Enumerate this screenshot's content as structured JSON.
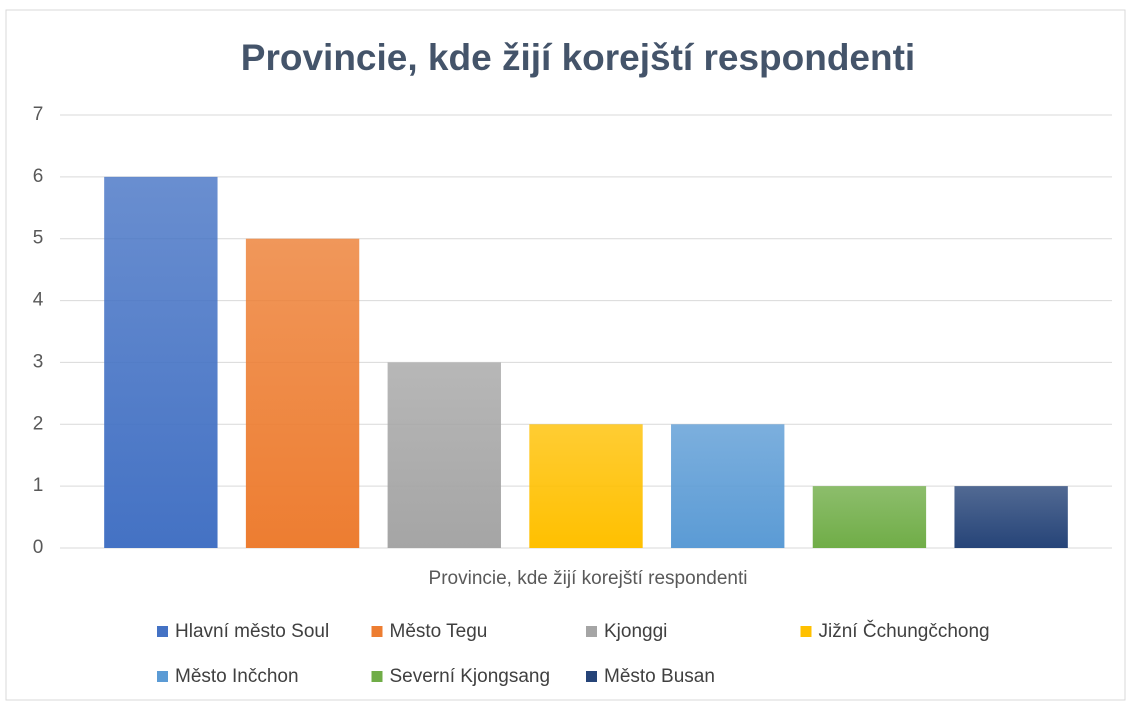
{
  "chart_data": {
    "type": "bar",
    "title": "Provincie, kde žijí korejští respondenti",
    "x_label": "Provincie,  kde žijí korejští respondenti",
    "series": [
      {
        "name": "Hlavní město Soul",
        "color": "#4472c4",
        "values": [
          6
        ]
      },
      {
        "name": "Město Tegu",
        "color": "#ed7d31",
        "values": [
          5
        ]
      },
      {
        "name": "Kjonggi",
        "color": "#a5a5a5",
        "values": [
          3
        ]
      },
      {
        "name": "Jižní Čchungčchong",
        "color": "#ffc000",
        "values": [
          2
        ]
      },
      {
        "name": "Město Inčchon",
        "color": "#5b9bd5",
        "values": [
          2
        ]
      },
      {
        "name": "Severní Kjongsang",
        "color": "#70ad47",
        "values": [
          1
        ]
      },
      {
        "name": "Město Busan",
        "color": "#264478",
        "values": [
          1
        ]
      }
    ],
    "ylim": [
      0,
      7
    ],
    "yticks": [
      0,
      1,
      2,
      3,
      4,
      5,
      6,
      7
    ],
    "grid": true,
    "legend": "bottom"
  }
}
